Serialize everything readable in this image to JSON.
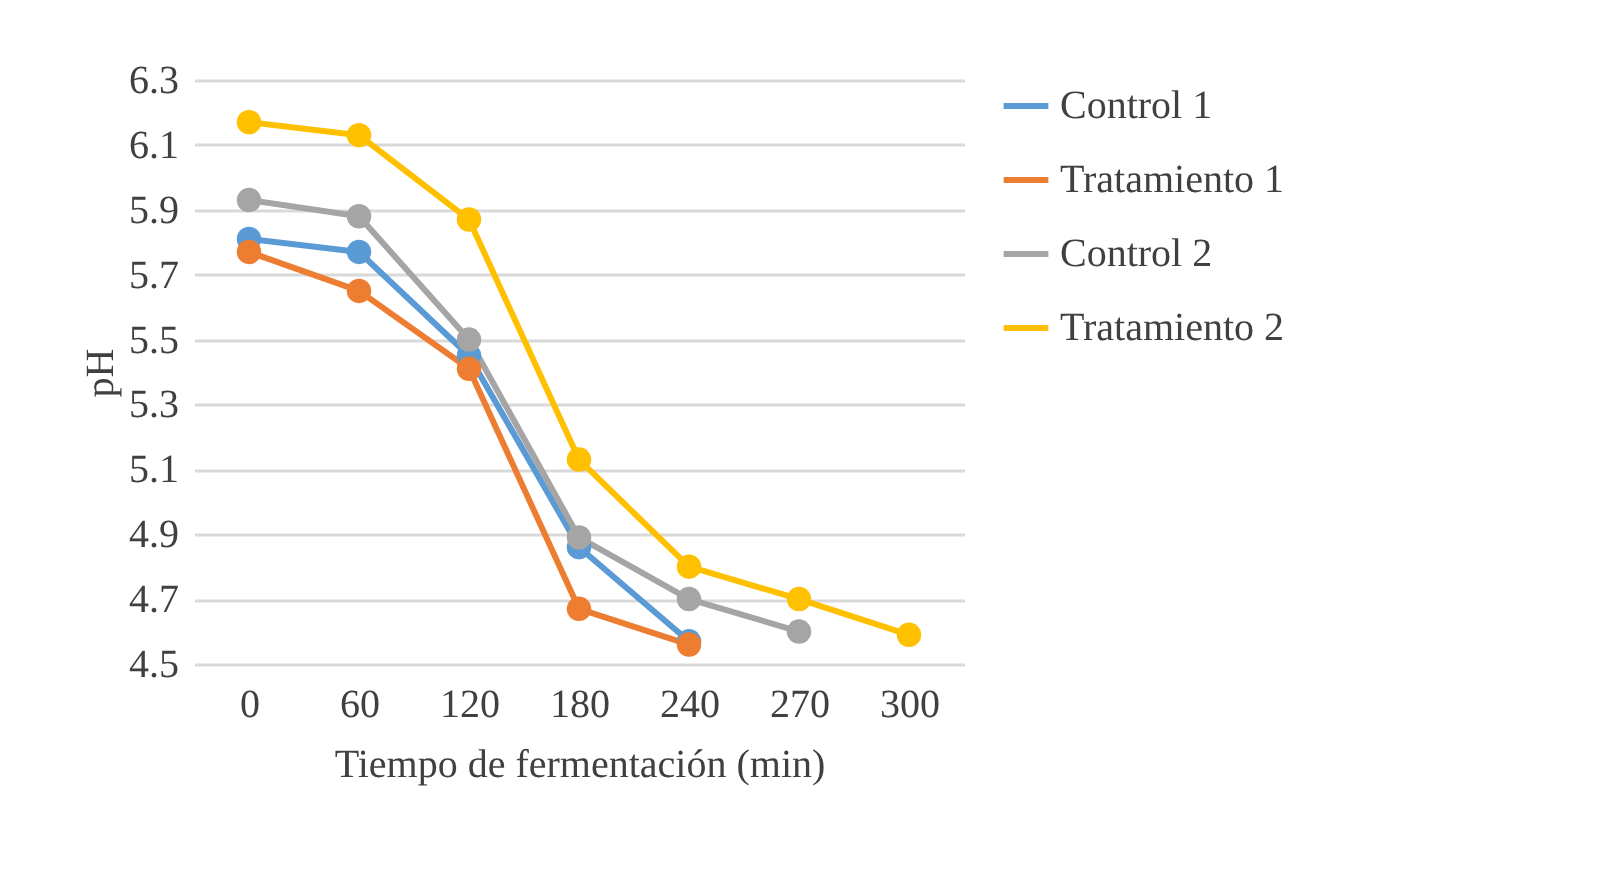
{
  "chart_data": {
    "type": "line",
    "xlabel": "Tiempo de fermentación (min)",
    "ylabel": "pH",
    "categories": [
      "0",
      "60",
      "120",
      "180",
      "240",
      "270",
      "300"
    ],
    "series": [
      {
        "name": "Control 1",
        "color": "#5b9bd5",
        "values": [
          5.81,
          5.77,
          5.45,
          4.86,
          4.57,
          null,
          null
        ]
      },
      {
        "name": "Tratamiento 1",
        "color": "#ed7d31",
        "values": [
          5.77,
          5.65,
          5.41,
          4.67,
          4.56,
          null,
          null
        ]
      },
      {
        "name": "Control 2",
        "color": "#a5a5a5",
        "values": [
          5.93,
          5.88,
          5.5,
          4.89,
          4.7,
          4.6,
          null
        ]
      },
      {
        "name": "Tratamiento 2",
        "color": "#ffc000",
        "values": [
          6.17,
          6.13,
          5.87,
          5.13,
          4.8,
          4.7,
          4.59
        ]
      }
    ],
    "ylim": [
      4.5,
      6.3
    ],
    "yticks": [
      4.5,
      4.7,
      4.9,
      5.1,
      5.3,
      5.5,
      5.7,
      5.9,
      6.1,
      6.3
    ],
    "grid": "y",
    "legend": "right",
    "marker": "circle",
    "line_style": "solid"
  }
}
